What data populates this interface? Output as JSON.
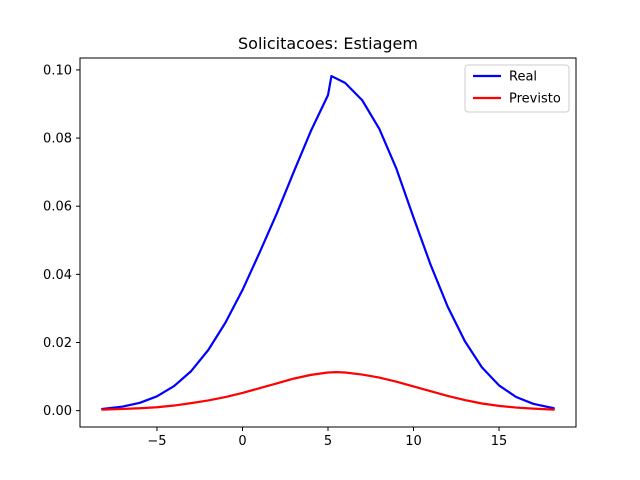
{
  "chart_data": {
    "type": "line",
    "title": "Solicitacoes: Estiagem",
    "xlabel": "",
    "ylabel": "",
    "xlim": [
      -9.5,
      19.5
    ],
    "ylim": [
      -0.0048,
      0.1035
    ],
    "x_ticks": [
      -5,
      0,
      5,
      10,
      15
    ],
    "x_tick_labels": [
      "−5",
      "0",
      "5",
      "10",
      "15"
    ],
    "y_ticks": [
      0.0,
      0.02,
      0.04,
      0.06,
      0.08,
      0.1
    ],
    "y_tick_labels": [
      "0.00",
      "0.02",
      "0.04",
      "0.06",
      "0.08",
      "0.10"
    ],
    "grid": false,
    "legend_position": "top-right",
    "series": [
      {
        "name": "Real",
        "color": "#0000ff",
        "x": [
          -8.2,
          -7,
          -6,
          -5,
          -4,
          -3,
          -2,
          -1,
          0,
          1,
          2,
          3,
          4,
          5,
          5.2,
          6,
          7,
          8,
          9,
          10,
          11,
          12,
          13,
          14,
          15,
          16,
          17,
          18.2
        ],
        "y": [
          0.0005,
          0.0012,
          0.0023,
          0.0042,
          0.0072,
          0.0116,
          0.0178,
          0.0258,
          0.0354,
          0.0464,
          0.0578,
          0.0701,
          0.0821,
          0.0926,
          0.0982,
          0.0962,
          0.0911,
          0.0827,
          0.071,
          0.0567,
          0.0428,
          0.0305,
          0.0204,
          0.0127,
          0.0074,
          0.004,
          0.002,
          0.0007
        ]
      },
      {
        "name": "Previsto",
        "color": "#ff0000",
        "x": [
          -8.2,
          -7,
          -6,
          -5,
          -4,
          -3,
          -2,
          -1,
          0,
          1,
          2,
          3,
          4,
          5,
          5.5,
          6,
          7,
          8,
          9,
          10,
          11,
          12,
          13,
          14,
          15,
          16,
          17,
          18.2
        ],
        "y": [
          0.0003,
          0.0005,
          0.0007,
          0.001,
          0.0015,
          0.0022,
          0.003,
          0.004,
          0.0052,
          0.0066,
          0.008,
          0.0094,
          0.0105,
          0.0112,
          0.0113,
          0.0112,
          0.0106,
          0.0097,
          0.0085,
          0.0071,
          0.0057,
          0.0043,
          0.0031,
          0.0021,
          0.0014,
          0.0009,
          0.0006,
          0.0003
        ]
      }
    ]
  }
}
